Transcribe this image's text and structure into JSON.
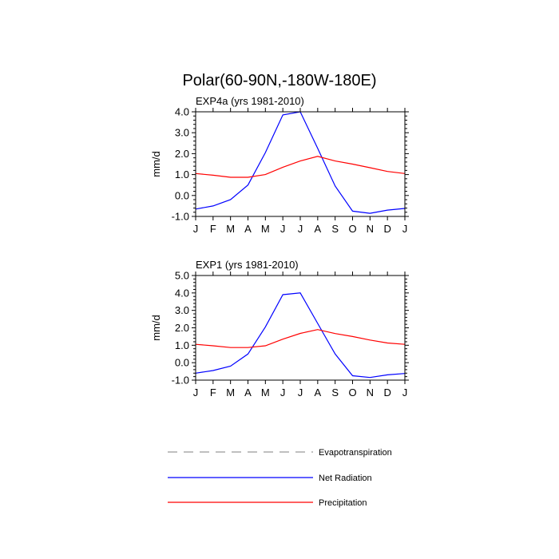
{
  "figure_title": "Polar(60-90N,-180W-180E)",
  "chart_data": [
    {
      "type": "line",
      "title": "EXP4a (yrs 1981-2010)",
      "ylabel": "mm/d",
      "xlabel": "",
      "categories": [
        "J",
        "F",
        "M",
        "A",
        "M",
        "J",
        "J",
        "A",
        "S",
        "O",
        "N",
        "D",
        "J"
      ],
      "ylim": [
        -1.0,
        4.0
      ],
      "yticks": [
        "-1.0",
        "0.0",
        "1.0",
        "2.0",
        "3.0",
        "4.0"
      ],
      "series": [
        {
          "name": "Net Radiation",
          "color": "#0000ff",
          "values": [
            -0.65,
            -0.5,
            -0.2,
            0.5,
            2.05,
            3.85,
            4.0,
            2.25,
            0.45,
            -0.75,
            -0.85,
            -0.7,
            -0.62
          ]
        },
        {
          "name": "Precipitation",
          "color": "#ff0000",
          "values": [
            1.05,
            0.97,
            0.87,
            0.87,
            1.0,
            1.35,
            1.65,
            1.87,
            1.65,
            1.5,
            1.33,
            1.15,
            1.05
          ]
        }
      ]
    },
    {
      "type": "line",
      "title": "EXP1 (yrs 1981-2010)",
      "ylabel": "mm/d",
      "xlabel": "",
      "categories": [
        "J",
        "F",
        "M",
        "A",
        "M",
        "J",
        "J",
        "A",
        "S",
        "O",
        "N",
        "D",
        "J"
      ],
      "ylim": [
        -1.0,
        5.0
      ],
      "yticks": [
        "-1.0",
        "0.0",
        "1.0",
        "2.0",
        "3.0",
        "4.0",
        "5.0"
      ],
      "series": [
        {
          "name": "Net Radiation",
          "color": "#0000ff",
          "values": [
            -0.6,
            -0.45,
            -0.2,
            0.5,
            2.05,
            3.9,
            4.0,
            2.25,
            0.5,
            -0.75,
            -0.85,
            -0.7,
            -0.62
          ]
        },
        {
          "name": "Precipitation",
          "color": "#ff0000",
          "values": [
            1.05,
            0.97,
            0.87,
            0.87,
            0.97,
            1.35,
            1.68,
            1.9,
            1.67,
            1.5,
            1.3,
            1.13,
            1.05
          ]
        }
      ]
    }
  ],
  "legend": [
    {
      "label": "Evapotranspiration",
      "color": "#999999",
      "dash": true
    },
    {
      "label": "Net Radiation",
      "color": "#0000ff",
      "dash": false
    },
    {
      "label": "Precipitation",
      "color": "#ff0000",
      "dash": false
    }
  ]
}
